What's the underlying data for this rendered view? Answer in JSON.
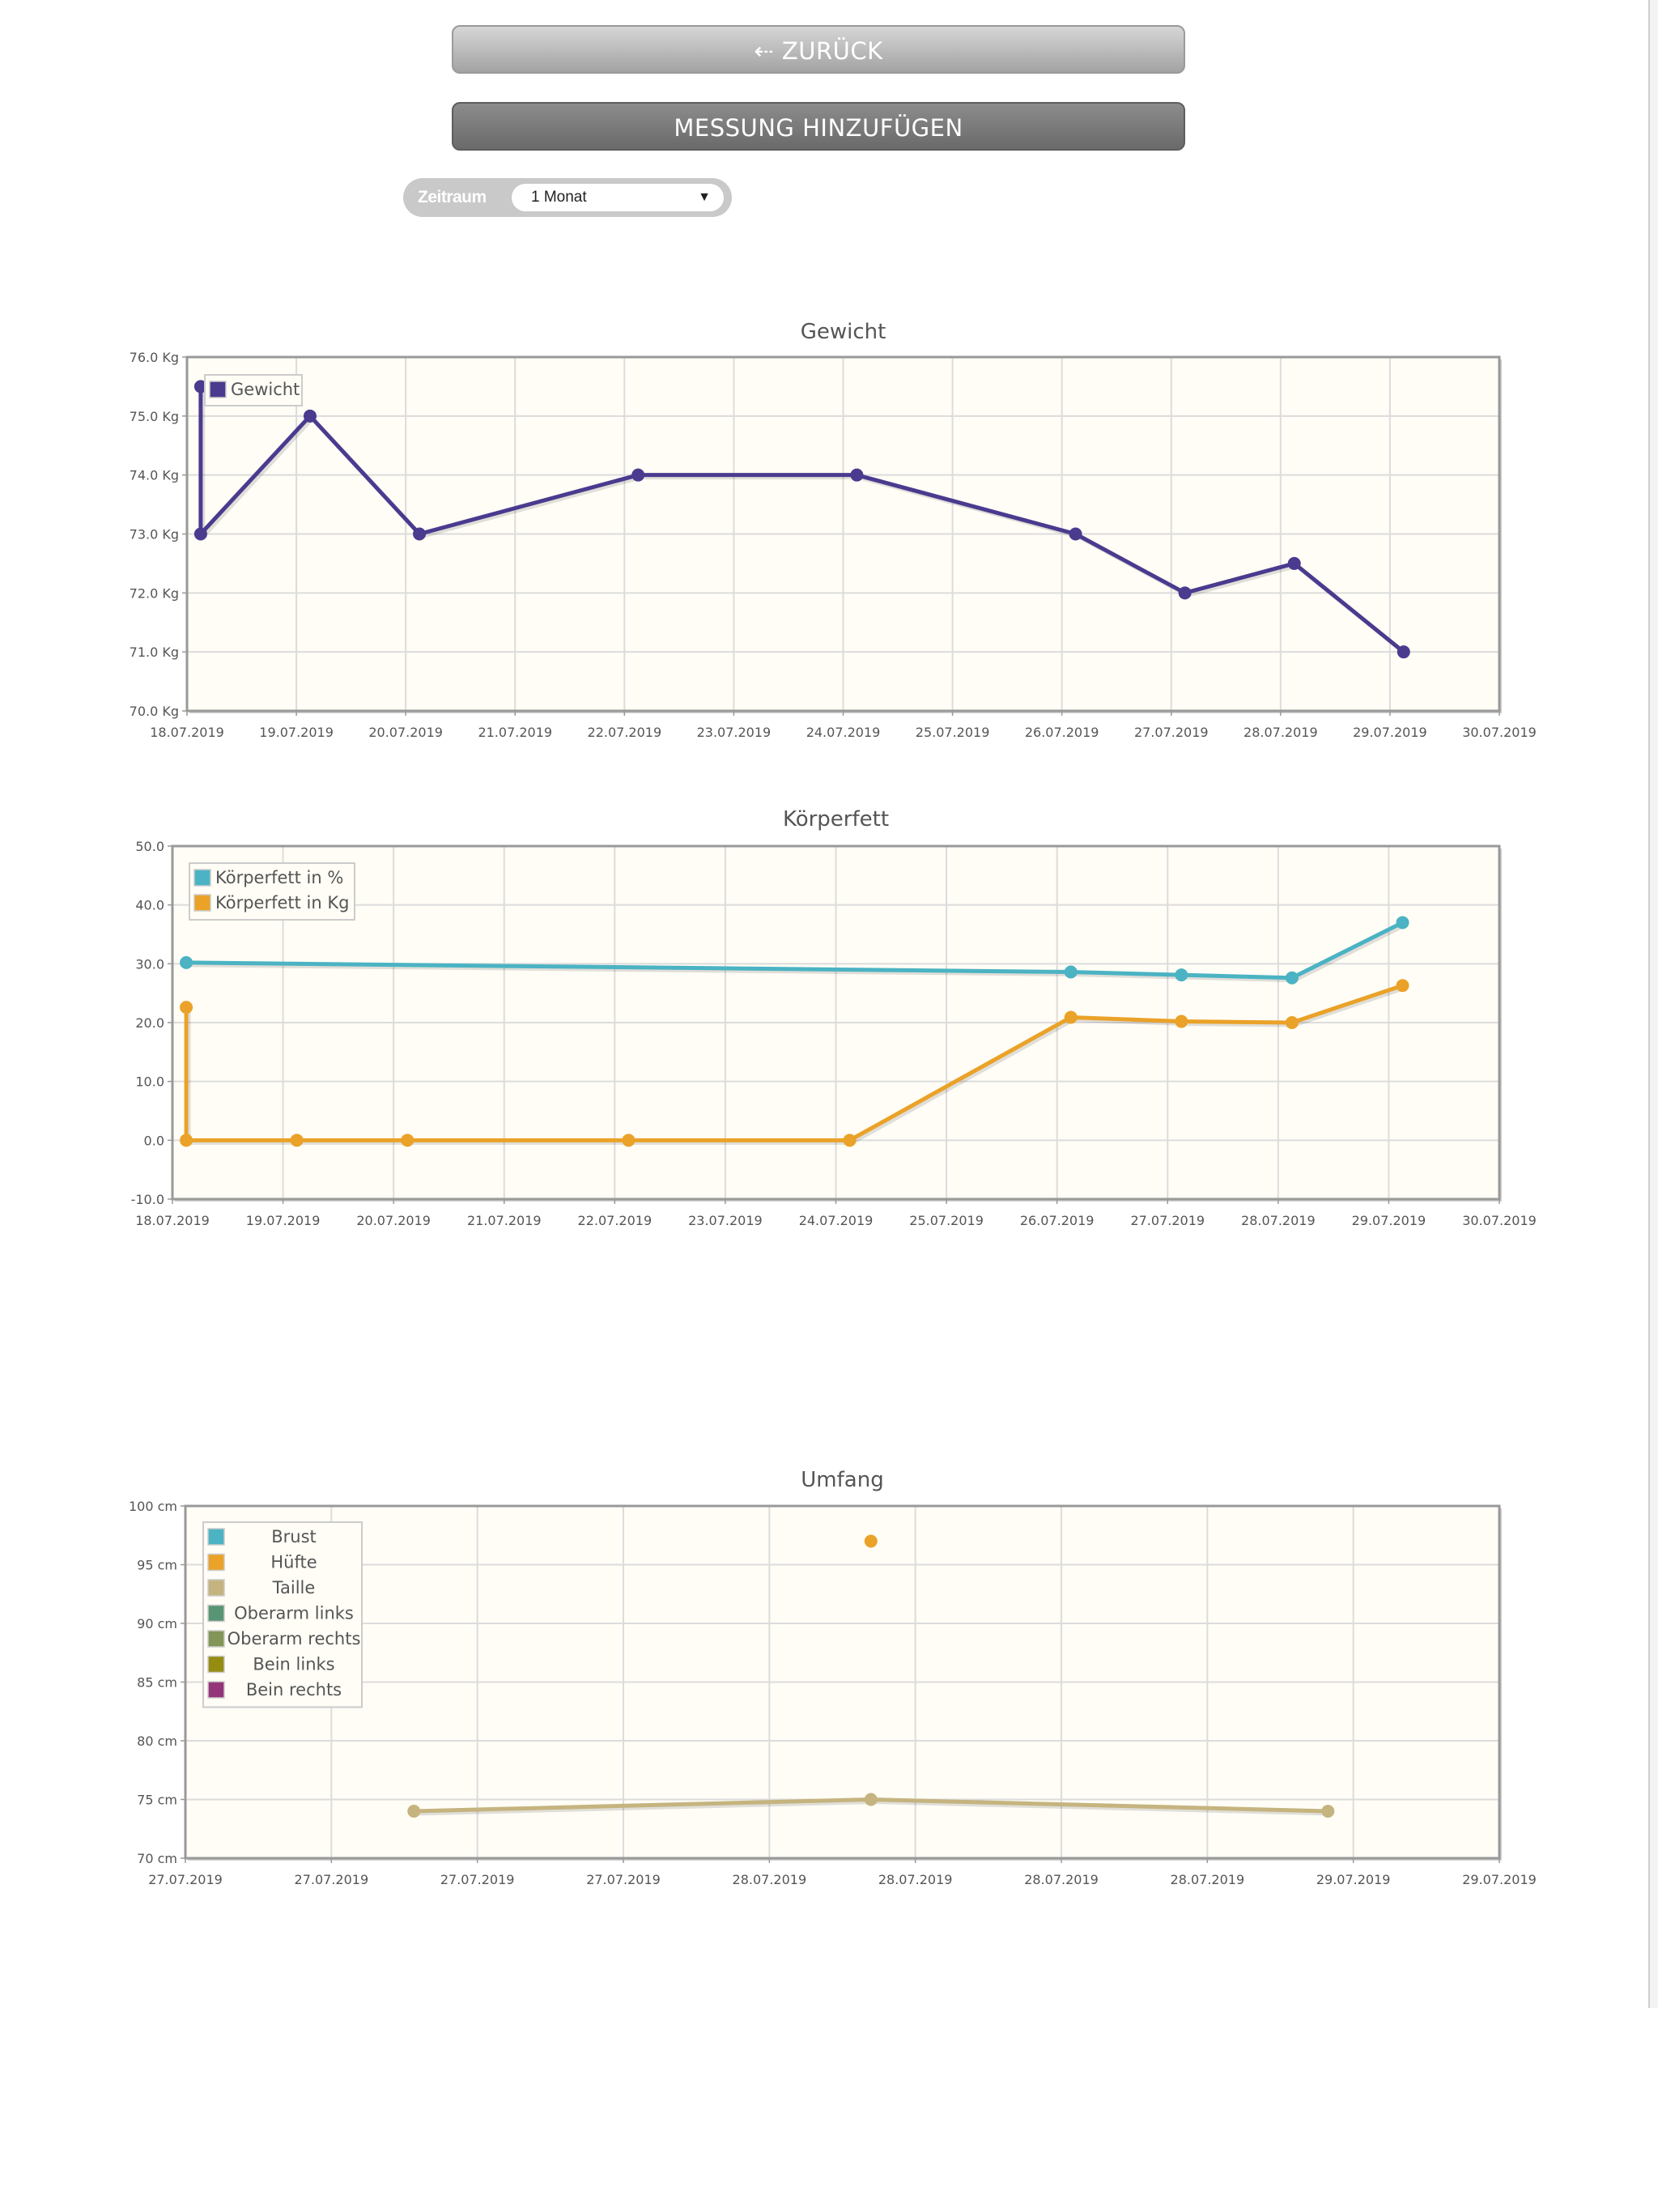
{
  "nav": {
    "back_label": "⇠ ZURÜCK",
    "add_label": "MESSUNG HINZUFÜGEN"
  },
  "period": {
    "label": "Zeitraum",
    "selected": "1 Monat"
  },
  "chart_data": [
    {
      "type": "line",
      "title": "Gewicht",
      "ylim": [
        70,
        76
      ],
      "y_ticks": [
        "76.0 Kg",
        "75.0 Kg",
        "74.0 Kg",
        "73.0 Kg",
        "72.0 Kg",
        "71.0 Kg",
        "70.0 Kg"
      ],
      "x_ticks": [
        "18.07.2019",
        "19.07.2019",
        "20.07.2019",
        "21.07.2019",
        "22.07.2019",
        "23.07.2019",
        "24.07.2019",
        "25.07.2019",
        "26.07.2019",
        "27.07.2019",
        "28.07.2019",
        "29.07.2019",
        "30.07.2019"
      ],
      "grid": true,
      "legend_position": "top-left",
      "series": [
        {
          "name": "Gewicht",
          "color": "#4a3b8f",
          "x": [
            "18.07.2019 03:00",
            "18.07.2019 03:00",
            "19.07.2019 03:00",
            "20.07.2019 03:00",
            "22.07.2019 03:00",
            "24.07.2019 03:00",
            "26.07.2019 03:00",
            "27.07.2019 03:00",
            "28.07.2019 03:00",
            "29.07.2019 03:00"
          ],
          "values": [
            75.5,
            73.0,
            75.0,
            73.0,
            74.0,
            74.0,
            73.0,
            72.0,
            72.5,
            71.0
          ]
        }
      ]
    },
    {
      "type": "line",
      "title": "Körperfett",
      "ylim": [
        -10,
        50
      ],
      "y_ticks": [
        "50.0",
        "40.0",
        "30.0",
        "20.0",
        "10.0",
        "0.0",
        "-10.0"
      ],
      "x_ticks": [
        "18.07.2019",
        "19.07.2019",
        "20.07.2019",
        "21.07.2019",
        "22.07.2019",
        "23.07.2019",
        "24.07.2019",
        "25.07.2019",
        "26.07.2019",
        "27.07.2019",
        "28.07.2019",
        "29.07.2019",
        "30.07.2019"
      ],
      "grid": true,
      "legend_position": "top-left",
      "series": [
        {
          "name": "Körperfett in %",
          "color": "#4bb3c3",
          "x": [
            "18.07.2019 03:00",
            "26.07.2019 03:00",
            "27.07.2019 03:00",
            "28.07.2019 03:00",
            "29.07.2019 03:00"
          ],
          "values": [
            30.2,
            28.6,
            28.1,
            27.6,
            37.0
          ]
        },
        {
          "name": "Körperfett in Kg",
          "color": "#eaa228",
          "x": [
            "18.07.2019 03:00",
            "18.07.2019 03:00",
            "19.07.2019 03:00",
            "20.07.2019 03:00",
            "22.07.2019 03:00",
            "24.07.2019 03:00",
            "26.07.2019 03:00",
            "27.07.2019 03:00",
            "28.07.2019 03:00",
            "29.07.2019 03:00"
          ],
          "values": [
            22.6,
            0.0,
            0.0,
            0.0,
            0.0,
            0.0,
            20.9,
            20.2,
            20.0,
            26.3
          ]
        }
      ]
    },
    {
      "type": "line",
      "title": "Umfang",
      "ylim": [
        70,
        100
      ],
      "y_ticks": [
        "100 cm",
        "95 cm",
        "90 cm",
        "85 cm",
        "80 cm",
        "75 cm",
        "70 cm"
      ],
      "x_ticks": [
        "27.07.2019",
        "27.07.2019",
        "27.07.2019",
        "27.07.2019",
        "28.07.2019",
        "28.07.2019",
        "28.07.2019",
        "28.07.2019",
        "29.07.2019",
        "29.07.2019"
      ],
      "grid": true,
      "legend_position": "top-left",
      "series": [
        {
          "name": "Brust",
          "color": "#4bb3c3",
          "x": [],
          "values": []
        },
        {
          "name": "Hüfte",
          "color": "#eaa228",
          "x": [
            "28.07.2019 12:00"
          ],
          "values": [
            97
          ]
        },
        {
          "name": "Taille",
          "color": "#c5b47f",
          "x": [
            "27.07.2019 12:00",
            "28.07.2019 12:00",
            "29.07.2019 12:00"
          ],
          "values": [
            74,
            75,
            74
          ]
        },
        {
          "name": "Oberarm links",
          "color": "#579575",
          "x": [],
          "values": []
        },
        {
          "name": "Oberarm rechts",
          "color": "#839557",
          "x": [],
          "values": []
        },
        {
          "name": "Bein links",
          "color": "#958c12",
          "x": [],
          "values": []
        },
        {
          "name": "Bein rechts",
          "color": "#953579",
          "x": [],
          "values": []
        }
      ]
    }
  ]
}
